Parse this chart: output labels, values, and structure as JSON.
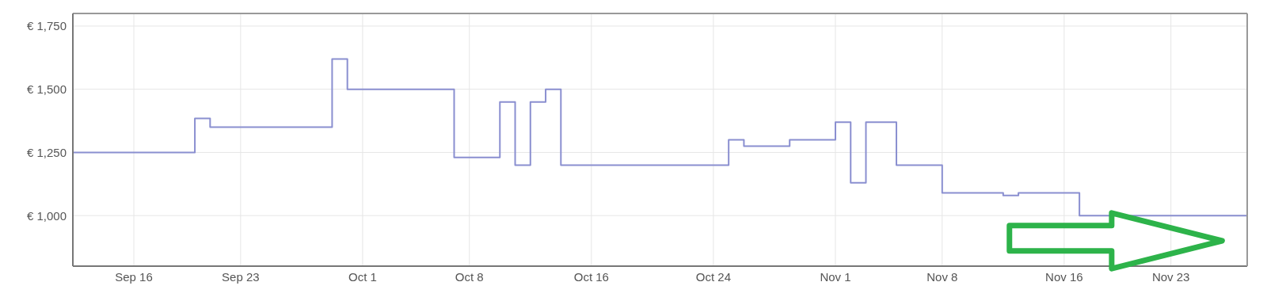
{
  "chart_data": {
    "type": "step",
    "color": "#8a8fd0",
    "x": [
      "--09-12",
      "--09-20",
      "--09-21",
      "--09-29",
      "--09-30",
      "--10-07",
      "--10-10",
      "--10-11",
      "--10-12",
      "--10-13",
      "--10-14",
      "--10-25",
      "--10-26",
      "--10-29",
      "--11-01",
      "--11-02",
      "--11-03",
      "--11-05",
      "--11-08",
      "--11-12",
      "--11-13",
      "--11-17",
      "--11-28"
    ],
    "values": [
      1250,
      1385,
      1350,
      1620,
      1500,
      1230,
      1450,
      1200,
      1450,
      1500,
      1200,
      1300,
      1275,
      1300,
      1370,
      1130,
      1370,
      1200,
      1090,
      1080,
      1090,
      1000,
      900
    ],
    "xlim": [
      "--09-12",
      "--11-28"
    ],
    "xticks": [
      {
        "value": "--09-16",
        "label": "Sep 16"
      },
      {
        "value": "--09-23",
        "label": "Sep 23"
      },
      {
        "value": "--10-01",
        "label": "Oct 1"
      },
      {
        "value": "--10-08",
        "label": "Oct 8"
      },
      {
        "value": "--10-16",
        "label": "Oct 16"
      },
      {
        "value": "--10-24",
        "label": "Oct 24"
      },
      {
        "value": "--11-01",
        "label": "Nov 1"
      },
      {
        "value": "--11-08",
        "label": "Nov 8"
      },
      {
        "value": "--11-16",
        "label": "Nov 16"
      },
      {
        "value": "--11-23",
        "label": "Nov 23"
      }
    ],
    "ylim": [
      800,
      1800
    ],
    "yticks": [
      {
        "value": 1000,
        "label": "€ 1,000"
      },
      {
        "value": 1250,
        "label": "€ 1,250"
      },
      {
        "value": 1500,
        "label": "€ 1,500"
      },
      {
        "value": 1750,
        "label": "€ 1,750"
      }
    ],
    "grid": true
  }
}
